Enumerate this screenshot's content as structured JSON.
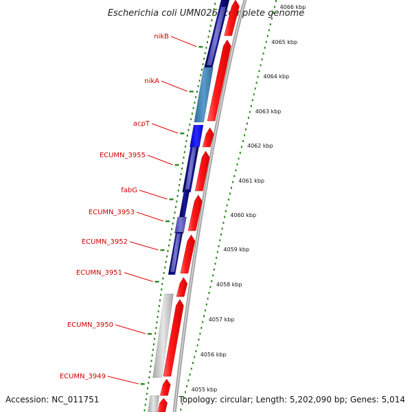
{
  "header": {
    "title": "Escherichia coli UMN026, complete genome"
  },
  "footer": {
    "accession": "Accession: NC_011751",
    "topology": "Topology: circular; Length: 5,202,090 bp; Genes: 5,014"
  },
  "colors": {
    "cds_forward": "#ff1a1a",
    "backbone": "#8c8c8c",
    "tick_green": "#2e8b22",
    "label_red": "#cc0000",
    "leader_red": "#dd0000"
  },
  "genes": [
    {
      "name": "nikB"
    },
    {
      "name": "nikA"
    },
    {
      "name": "acpT"
    },
    {
      "name": "ECUMN_3955"
    },
    {
      "name": "fabG"
    },
    {
      "name": "ECUMN_3953"
    },
    {
      "name": "ECUMN_3952"
    },
    {
      "name": "ECUMN_3951"
    },
    {
      "name": "ECUMN_3950"
    },
    {
      "name": "ECUMN_3949"
    }
  ],
  "scale_labels": [
    "4066 kbp",
    "4065 kbp",
    "4064 kbp",
    "4063 kbp",
    "4062 kbp",
    "4061 kbp",
    "4060 kbp",
    "4059 kbp",
    "4058 kbp",
    "4057 kbp",
    "4056 kbp",
    "4055 kbp"
  ]
}
